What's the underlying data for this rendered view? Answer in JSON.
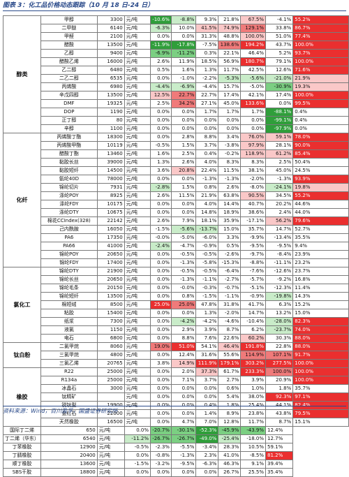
{
  "title": "图表 3：化工品价格动态跟踪（10 月 18 日-24 日）",
  "footer": "资料来源：Wind，百川盈孚，国盛证券研究所",
  "colors": {
    "red_strong": "#ea2f2f",
    "red_mid": "#f07a7a",
    "red_light": "#fac8c8",
    "green_strong": "#2f9e3a",
    "green_mid": "#7bcf82",
    "green_light": "#c9ecc9",
    "cat_bg": "#ffffff"
  },
  "unit_label": "元/吨",
  "categories": [
    {
      "name": "醇类",
      "start": 0,
      "span": 14
    },
    {
      "name": "化纤",
      "start": 14,
      "span": 16
    },
    {
      "name": "氯化工",
      "start": 30,
      "span": 9
    },
    {
      "name": "钛白粉",
      "start": 39,
      "span": 3
    },
    {
      "name": "橡胶",
      "start": 42,
      "span": 7
    }
  ],
  "rows": [
    {
      "name": "甲醇",
      "price": "3300",
      "c": [
        "-10.6%",
        "-8.8%",
        "9.3%",
        "21.8%",
        "67.5%",
        "-4.1%",
        "55.2%"
      ],
      "t": [
        "gs",
        "gl",
        "",
        "",
        "rl",
        "",
        "rs"
      ]
    },
    {
      "name": "二甲醚",
      "price": "6140",
      "c": [
        "-6.3%",
        "10.0%",
        "41.5%",
        "74.9%",
        "129.1%",
        "33.8%",
        "86.7%"
      ],
      "t": [
        "gl",
        "",
        "rl",
        "rl",
        "rm",
        "",
        "rs"
      ]
    },
    {
      "name": "甲醛",
      "price": "2100",
      "c": [
        "0.0%",
        "0.0%",
        "31.3%",
        "48.8%",
        "100.0%",
        "51.0%",
        "77.4%"
      ],
      "t": [
        "",
        "",
        "",
        "",
        "rl",
        "",
        "rs"
      ]
    },
    {
      "name": "醋酸",
      "price": "13500",
      "c": [
        "-11.9%",
        "-17.8%",
        "-7.5%",
        "138.6%",
        "194.2%",
        "43.7%",
        "100.0%"
      ],
      "t": [
        "gs",
        "gs",
        "",
        "rm",
        "rs",
        "",
        "rs"
      ]
    },
    {
      "name": "乙醇",
      "price": "9400",
      "c": [
        "-6.9%",
        "-11.2%",
        "0.3%",
        "22.1%",
        "46.4%",
        "5.2%",
        "93.7%"
      ],
      "t": [
        "gm",
        "gm",
        "",
        "",
        "",
        "",
        "rs"
      ]
    },
    {
      "name": "醋酸乙烯",
      "price": "16000",
      "c": [
        "2.6%",
        "11.9%",
        "18.5%",
        "56.9%",
        "180.7%",
        "79.1%",
        "100.0%"
      ],
      "t": [
        "",
        "",
        "",
        "",
        "rs",
        "",
        "rs"
      ]
    },
    {
      "name": "乙二醇",
      "price": "6480",
      "c": [
        "0.5%",
        "1.6%",
        "1.3%",
        "11.7%",
        "42.5%",
        "12.6%",
        "71.6%"
      ],
      "t": [
        "",
        "",
        "",
        "",
        "",
        "",
        "rs"
      ]
    },
    {
      "name": "二乙二醇",
      "price": "6535",
      "c": [
        "0.0%",
        "-1.0%",
        "-2.2%",
        "-5.3%",
        "-5.6%",
        "-21.0%",
        "21.9%"
      ],
      "t": [
        "",
        "",
        "",
        "gl",
        "gl",
        "gl",
        "rl"
      ]
    },
    {
      "name": "丙烯酸",
      "price": "6980",
      "c": [
        "-4.4%",
        "-6.9%",
        "-4.4%",
        "15.7%",
        "-5.0%",
        "-30.9%",
        "19.3%"
      ],
      "t": [
        "gl",
        "gl",
        "",
        "",
        "",
        "gm",
        "rl"
      ]
    },
    {
      "name": "辛戊四醇",
      "price": "13500",
      "c": [
        "12.5%",
        "22.7%",
        "22.7%",
        "17.4%",
        "42.1%",
        "17.4%",
        "100.0%"
      ],
      "t": [
        "rl",
        "rm",
        "",
        "",
        "",
        "",
        "rs"
      ]
    },
    {
      "name": "DMF",
      "price": "19325",
      "c": [
        "2.5%",
        "34.2%",
        "27.1%",
        "45.0%",
        "133.6%",
        "0.0%",
        "99.5%"
      ],
      "t": [
        "",
        "rm",
        "",
        "",
        "rs",
        "",
        "rs"
      ]
    },
    {
      "name": "DOP",
      "price": "1190",
      "c": [
        "0.0%",
        "0.0%",
        "1.7%",
        "1.7%",
        "1.7%",
        "-88.1%",
        "0.4%"
      ],
      "t": [
        "",
        "",
        "",
        "",
        "",
        "gs",
        ""
      ]
    },
    {
      "name": "正丁醇",
      "price": "80",
      "c": [
        "0.0%",
        "0.0%",
        "0.0%",
        "0.0%",
        "0.0%",
        "-99.1%",
        "0.4%"
      ],
      "t": [
        "",
        "",
        "",
        "",
        "",
        "gs",
        ""
      ]
    },
    {
      "name": "辛醇",
      "price": "1100",
      "c": [
        "0.0%",
        "0.0%",
        "0.0%",
        "0.0%",
        "0.0%",
        "-97.9%",
        "0.0%"
      ],
      "t": [
        "",
        "",
        "",
        "",
        "",
        "gs",
        ""
      ]
    },
    {
      "name": "丙烯酸丁酯",
      "price": "18300",
      "c": [
        "0.0%",
        "2.8%",
        "8.8%",
        "3.4%",
        "76.0%",
        "59.1%",
        "78.0%"
      ],
      "t": [
        "",
        "",
        "",
        "",
        "rl",
        "rl",
        "rs"
      ]
    },
    {
      "name": "丙烯酸甲酯",
      "price": "10119",
      "c": [
        "-0.5%",
        "1.5%",
        "3.7%",
        "-3.8%",
        "97.9%",
        "28.1%",
        "90.0%"
      ],
      "t": [
        "",
        "",
        "",
        "",
        "rl",
        "",
        "rs"
      ]
    },
    {
      "name": "醋酸丁酯",
      "price": "13460",
      "c": [
        "1.6%",
        "2.5%",
        "0.4%",
        "-0.2%",
        "118.9%",
        "61.2%",
        "85.4%"
      ],
      "t": [
        "",
        "",
        "",
        "",
        "rl",
        "rl",
        "rs"
      ]
    },
    {
      "name": "黏胶长丝",
      "price": "39000",
      "c": [
        "1.3%",
        "2.6%",
        "4.0%",
        "8.3%",
        "8.3%",
        "2.5%",
        "50.4%"
      ],
      "t": [
        "",
        "",
        "",
        "",
        "",
        "",
        ""
      ]
    },
    {
      "name": "黏胶短纤",
      "price": "14500",
      "c": [
        "3.6%",
        "20.8%",
        "22.4%",
        "11.5%",
        "38.1%",
        "45.0%",
        "24.5%"
      ],
      "t": [
        "",
        "rl",
        "",
        "",
        "",
        "",
        ""
      ]
    },
    {
      "name": "氨纶40D",
      "price": "78000",
      "c": [
        "0.0%",
        "0.0%",
        "-1.3%",
        "-1.3%",
        "-2.0%",
        "-1.3%",
        "93.9%"
      ],
      "t": [
        "",
        "",
        "",
        "",
        "",
        "",
        "rs"
      ]
    },
    {
      "name": "锦纶切片",
      "price": "7931",
      "c": [
        "-2.8%",
        "1.5%",
        "0.8%",
        "2.6%",
        "-8.0%",
        "-24.1%",
        "19.8%"
      ],
      "t": [
        "gl",
        "",
        "",
        "",
        "",
        "gl",
        "rl"
      ]
    },
    {
      "name": "涤纶POY",
      "price": "8925",
      "c": [
        "2.6%",
        "11.5%",
        "21.9%",
        "63.8%",
        "90.5%",
        "34.5%",
        "55.2%"
      ],
      "t": [
        "",
        "",
        "",
        "",
        "rl",
        "",
        "rs"
      ]
    },
    {
      "name": "涤纶FDY",
      "price": "10175",
      "c": [
        "0.0%",
        "0.0%",
        "4.0%",
        "14.4%",
        "40.7%",
        "20.2%",
        "44.6%"
      ],
      "t": [
        "",
        "",
        "",
        "",
        "",
        "",
        ""
      ]
    },
    {
      "name": "涤纶DTY",
      "price": "10675",
      "c": [
        "0.0%",
        "0.0%",
        "14.8%",
        "18.9%",
        "38.6%",
        "2.4%",
        "44.0%"
      ],
      "t": [
        "",
        "",
        "",
        "",
        "",
        "",
        ""
      ]
    },
    {
      "name": "棉花CCIndex(328)",
      "price": "22142",
      "c": [
        "2.6%",
        "7.9%",
        "18.1%",
        "35.9%",
        "-17.1%",
        "56.2%",
        "79.6%"
      ],
      "t": [
        "",
        "",
        "",
        "",
        "",
        "rl",
        "rs"
      ]
    },
    {
      "name": "己内酰胺",
      "price": "16050",
      "c": [
        "-1.5%",
        "-5.6%",
        "-13.7%",
        "15.0%",
        "35.7%",
        "14.7%",
        "52.7%"
      ],
      "t": [
        "",
        "gl",
        "gl",
        "",
        "",
        "",
        ""
      ]
    },
    {
      "name": "PA6",
      "price": "17350",
      "c": [
        "-0.0%",
        "-5.0%",
        "-6.0%",
        "3.3%",
        "-9.9%",
        "-13.4%",
        "35.5%"
      ],
      "t": [
        "",
        "",
        "",
        "",
        "",
        "",
        ""
      ]
    },
    {
      "name": "PA66",
      "price": "41000",
      "c": [
        "-2.4%",
        "-4.7%",
        "-0.9%",
        "0.5%",
        "-9.5%",
        "-9.5%",
        "9.4%"
      ],
      "t": [
        "gl",
        "",
        "",
        "",
        "",
        "",
        ""
      ]
    },
    {
      "name": "锦纶POY",
      "price": "20650",
      "c": [
        "0.0%",
        "-0.5%",
        "-0.5%",
        "-2.6%",
        "-9.7%",
        "-8.4%",
        "23.9%"
      ],
      "t": [
        "",
        "",
        "",
        "",
        "",
        "",
        ""
      ]
    },
    {
      "name": "锦纶FDY",
      "price": "17400",
      "c": [
        "0.0%",
        "-1.3%",
        "-5.8%",
        "-15.3%",
        "-8.8%",
        "-11.1%",
        "23.2%"
      ],
      "t": [
        "",
        "",
        "",
        "",
        "",
        "",
        ""
      ]
    },
    {
      "name": "锦纶DTY",
      "price": "21900",
      "c": [
        "0.0%",
        "-0.5%",
        "-0.5%",
        "-6.4%",
        "-7.6%",
        "-12.6%",
        "23.7%"
      ],
      "t": [
        "",
        "",
        "",
        "",
        "",
        "",
        ""
      ]
    },
    {
      "name": "锦纶长丝",
      "price": "20650",
      "c": [
        "0.0%",
        "-1.3%",
        "-1.1%",
        "-2.7%",
        "-5.7%",
        "-9.2%",
        "16.8%"
      ],
      "t": [
        "",
        "",
        "",
        "",
        "",
        "",
        ""
      ]
    },
    {
      "name": "锦纶毛条",
      "price": "20150",
      "c": [
        "0.0%",
        "-0.0%",
        "-0.3%",
        "-0.7%",
        "-5.1%",
        "-12.3%",
        "11.4%"
      ],
      "t": [
        "",
        "",
        "",
        "",
        "",
        "",
        ""
      ]
    },
    {
      "name": "锦纶短纤",
      "price": "13500",
      "c": [
        "0.0%",
        "0.8%",
        "-1.5%",
        "-1.1%",
        "-0.9%",
        "-19.8%",
        "14.3%"
      ],
      "t": [
        "",
        "",
        "",
        "",
        "",
        "gl",
        ""
      ]
    },
    {
      "name": "棉短绒",
      "price": "8500",
      "c": [
        "25.0%",
        "25.0%",
        "47.8%",
        "31.8%",
        "41.7%",
        "6.3%",
        "15.2%"
      ],
      "t": [
        "rs",
        "rm",
        "",
        "",
        "",
        "",
        ""
      ]
    },
    {
      "name": "粘胶",
      "price": "15400",
      "c": [
        "0.0%",
        "0.0%",
        "1.3%",
        "-2.0%",
        "14.7%",
        "13.2%",
        "15.0%"
      ],
      "t": [
        "",
        "",
        "",
        "",
        "",
        "",
        ""
      ]
    },
    {
      "name": "纸浆",
      "price": "7300",
      "c": [
        "0.0%",
        "-4.2%",
        "-4.2%",
        "-4.6%",
        "-10.4%",
        "-28.0%",
        "82.3%"
      ],
      "t": [
        "",
        "gl",
        "",
        "",
        "",
        "gl",
        "rs"
      ]
    },
    {
      "name": "液氯",
      "price": "1150",
      "c": [
        "0.0%",
        "2.9%",
        "3.9%",
        "8.7%",
        "6.2%",
        "-23.7%",
        "74.0%"
      ],
      "t": [
        "",
        "",
        "",
        "",
        "",
        "gl",
        "rs"
      ]
    },
    {
      "name": "电石",
      "price": "6800",
      "c": [
        "0.0%",
        "8.8%",
        "7.6%",
        "22.6%",
        "60.2%",
        "30.3%",
        "88.0%"
      ],
      "t": [
        "",
        "",
        "",
        "",
        "rl",
        "",
        "rs"
      ]
    },
    {
      "name": "二氯甲烷",
      "price": "8060",
      "c": [
        "19.0%",
        "51.0%",
        "54.1%",
        "46.4%",
        "191.8%",
        "22.8%",
        "88.0%"
      ],
      "t": [
        "rm",
        "rs",
        "",
        "rl",
        "rs",
        "",
        "rs"
      ]
    },
    {
      "name": "三氯甲烷",
      "price": "4800",
      "c": [
        "0.0%",
        "12.4%",
        "31.6%",
        "55.6%",
        "114.9%",
        "107.1%",
        "91.7%"
      ],
      "t": [
        "",
        "",
        "",
        "",
        "rm",
        "rm",
        "rs"
      ]
    },
    {
      "name": "三氯乙烯",
      "price": "20765",
      "c": [
        "3.8%",
        "14.9%",
        "111.9%",
        "179.1%",
        "303.2%",
        "277.5%",
        "100.0%"
      ],
      "t": [
        "",
        "rl",
        "rs",
        "rs",
        "rs",
        "rs",
        "rs"
      ]
    },
    {
      "name": "R22",
      "price": "25000",
      "c": [
        "0.0%",
        "2.0%",
        "37.3%",
        "61.7%",
        "233.3%",
        "100.0%",
        "100.0%"
      ],
      "t": [
        "",
        "",
        "rl",
        "",
        "rs",
        "rm",
        "rs"
      ]
    },
    {
      "name": "R134a",
      "price": "25000",
      "c": [
        "0.0%",
        "7.1%",
        "3.7%",
        "2.7%",
        "3.9%",
        "20.9%",
        "100.0%"
      ],
      "t": [
        "",
        "",
        "",
        "",
        "",
        "",
        "rs"
      ]
    },
    {
      "name": "冰晶石",
      "price": "3000",
      "c": [
        "0.0%",
        "0.0%",
        "0.0%",
        "0.6%",
        "1.0%",
        "1.8%",
        "35.7%"
      ],
      "t": [
        "",
        "",
        "",
        "",
        "",
        "",
        ""
      ]
    },
    {
      "name": "钛精矿",
      "price": "",
      "c": [
        "0.0%",
        "0.0%",
        "0.0%",
        "5.4%",
        "38.0%",
        "92.3%",
        "97.1%"
      ],
      "t": [
        "",
        "",
        "",
        "",
        "",
        "rs",
        "rs"
      ]
    },
    {
      "name": "锐钛型",
      "price": "19900",
      "c": [
        "0.0%",
        "0.0%",
        "0.4%",
        "1.8%",
        "25.4%",
        "44.1%",
        "82.4%"
      ],
      "t": [
        "",
        "",
        "",
        "",
        "",
        "",
        "rs"
      ]
    },
    {
      "name": "金红石",
      "price": "22000",
      "c": [
        "0.0%",
        "0.0%",
        "1.4%",
        "8.9%",
        "23.8%",
        "43.8%",
        "79.5%"
      ],
      "t": [
        "",
        "",
        "",
        "",
        "",
        "",
        "rs"
      ]
    },
    {
      "name": "天然橡胶",
      "price": "16500",
      "c": [
        "0.0%",
        "4.7%",
        "7.0%",
        "12.8%",
        "11.7%",
        "8.7%",
        "15.1%"
      ],
      "t": [
        "",
        "",
        "",
        "",
        "",
        "",
        ""
      ]
    },
    {
      "name": "国际丁二烯",
      "price": "650",
      "c": [
        "0.0%",
        "-20.7%",
        "-30.1%",
        "-52.3%",
        "-45.9%",
        "-43.9%",
        "12.4%"
      ],
      "t": [
        "",
        "gm",
        "gm",
        "gs",
        "gm",
        "gm",
        ""
      ]
    },
    {
      "name": "丁二烯（华东）",
      "price": "6540",
      "c": [
        "-11.2%",
        "-26.7%",
        "-26.7%",
        "-49.0%",
        "-25.4%",
        "-18.0%",
        "12.7%"
      ],
      "t": [
        "gl",
        "gm",
        "gm",
        "gs",
        "gl",
        "",
        ""
      ]
    },
    {
      "name": "丁苯橡胶",
      "price": "12900",
      "c": [
        "-0.5%",
        "-2.3%",
        "-5.5%",
        "-3.4%",
        "28.3%",
        "10.5%",
        "59.1%"
      ],
      "t": [
        "",
        "",
        "",
        "",
        "",
        "",
        ""
      ]
    },
    {
      "name": "丁腈橡胶",
      "price": "20400",
      "c": [
        "0.0%",
        "-0.8%",
        "-1.3%",
        "2.3%",
        "41.0%",
        "-8.5%",
        "81.2%"
      ],
      "t": [
        "",
        "",
        "",
        "",
        "",
        "",
        "rs"
      ]
    },
    {
      "name": "顺丁橡胶",
      "price": "13600",
      "c": [
        "-1.5%",
        "-3.2%",
        "-9.5%",
        "-6.3%",
        "46.3%",
        "9.1%",
        "39.4%"
      ],
      "t": [
        "",
        "",
        "",
        "",
        "",
        "",
        ""
      ]
    },
    {
      "name": "SBS干胶",
      "price": "18800",
      "c": [
        "0.0%",
        "0.0%",
        "0.0%",
        "0.0%",
        "26.7%",
        "25.5%",
        "35.4%"
      ],
      "t": [
        "",
        "",
        "",
        "",
        "",
        "",
        ""
      ]
    }
  ]
}
